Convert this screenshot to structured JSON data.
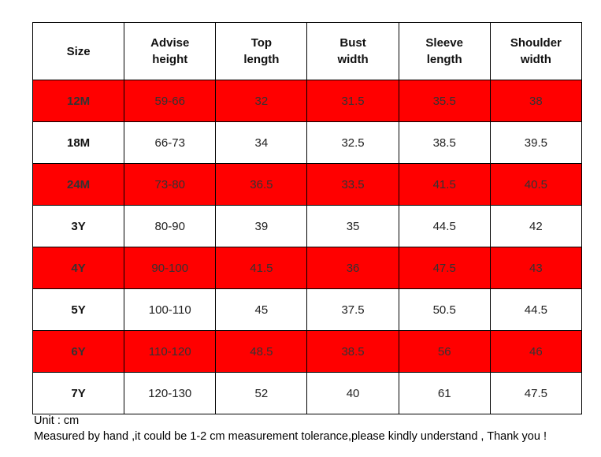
{
  "table": {
    "header": [
      "Size",
      "Advise height",
      "Top length",
      "Bust width",
      "Sleeve length",
      "Shoulder width"
    ],
    "rows": [
      [
        "12M",
        "59-66",
        "32",
        "31.5",
        "35.5",
        "38"
      ],
      [
        "18M",
        "66-73",
        "34",
        "32.5",
        "38.5",
        "39.5"
      ],
      [
        "24M",
        "73-80",
        "36.5",
        "33.5",
        "41.5",
        "40.5"
      ],
      [
        "3Y",
        "80-90",
        "39",
        "35",
        "44.5",
        "42"
      ],
      [
        "4Y",
        "90-100",
        "41.5",
        "36",
        "47.5",
        "43"
      ],
      [
        "5Y",
        "100-110",
        "45",
        "37.5",
        "50.5",
        "44.5"
      ],
      [
        "6Y",
        "110-120",
        "48.5",
        "38.5",
        "56",
        "46"
      ],
      [
        "7Y",
        "120-130",
        "52",
        "40",
        "61",
        "47.5"
      ]
    ]
  },
  "notes": [
    "Unit : cm",
    "Measured by hand ,it could be 1-2 cm measurement tolerance,please kindly understand , Thank you !"
  ]
}
